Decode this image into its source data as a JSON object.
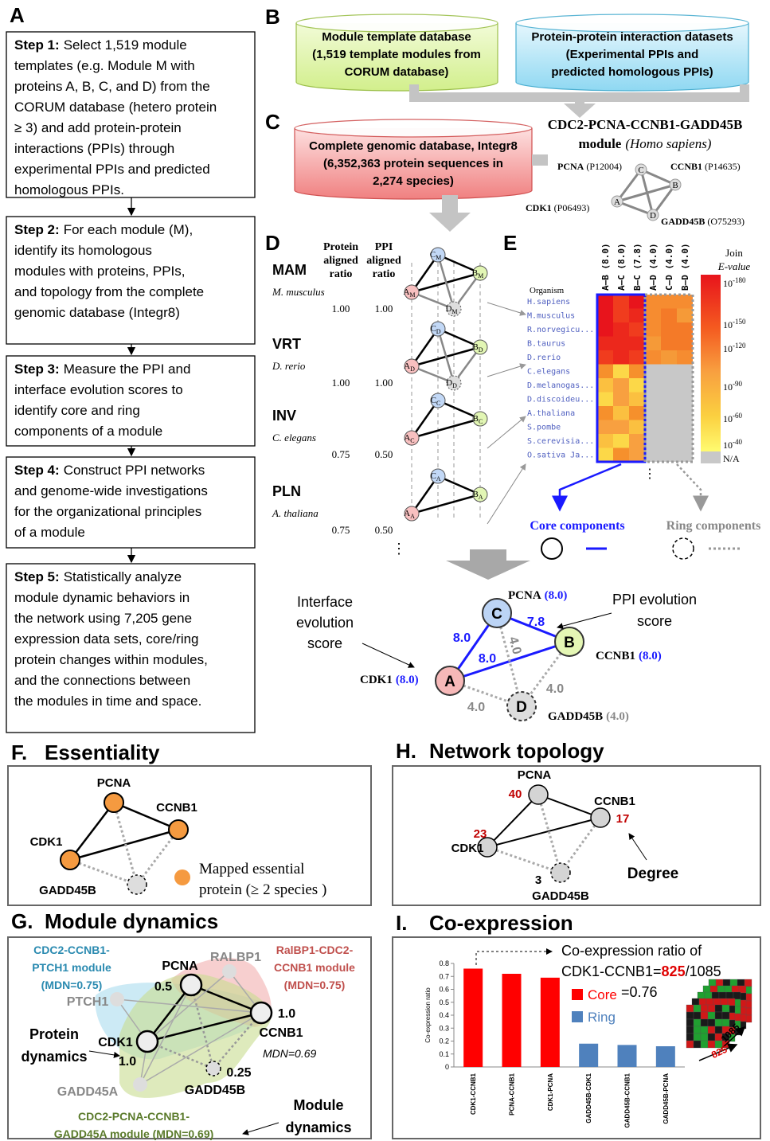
{
  "panel_a": {
    "label": "A",
    "steps": [
      {
        "heading": "Step 1:",
        "lines": [
          "Select 1,519 module",
          "templates (e.g. Module M with",
          "proteins A, B, C, and D) from the",
          "CORUM database (hetero protein",
          "≥ 3) and add protein-protein",
          "interactions (PPIs) through",
          "experimental PPIs and predicted",
          "homologous PPIs."
        ]
      },
      {
        "heading": "Step 2:",
        "lines": [
          "For each module (M),",
          "identify its homologous",
          "modules with proteins, PPIs,",
          "and topology from the complete",
          "genomic database (Integr8)"
        ]
      },
      {
        "heading": "Step 3:",
        "lines": [
          "Measure the PPI and",
          "interface evolution scores to",
          "identify core and ring",
          "components of a module"
        ]
      },
      {
        "heading": "Step 4:",
        "lines": [
          "Construct PPI networks",
          "and genome-wide investigations",
          "for the organizational principles",
          "of a module"
        ]
      },
      {
        "heading": "Step 5:",
        "lines": [
          "Statistically analyze",
          "module dynamic behaviors in",
          "the network using 7,205 gene",
          "expression data sets, core/ring",
          "protein changes within modules,",
          "and the connections between",
          "the modules in time and space."
        ]
      }
    ]
  },
  "panel_b": {
    "label": "B",
    "databases": [
      {
        "lines": [
          "Module template database",
          "(1,519 template modules from",
          "CORUM database)"
        ]
      },
      {
        "lines": [
          "Protein-protein interaction datasets",
          "(Experimental PPIs and",
          "predicted homologous PPIs)"
        ]
      }
    ]
  },
  "panel_c": {
    "label": "C",
    "database": {
      "lines": [
        "Complete genomic database, Integr8",
        "(6,352,363 protein sequences in",
        "2,274 species)"
      ]
    },
    "module": {
      "title": "CDC2-PCNA-CCNB1-GADD45B",
      "subtitle": "module",
      "species": "(Homo sapiens)",
      "proteins": [
        {
          "node": "A",
          "name": "CDK1",
          "id": "(P06493)"
        },
        {
          "node": "B",
          "name": "CCNB1",
          "id": "(P14635)"
        },
        {
          "node": "C",
          "name": "PCNA",
          "id": "(P12004)"
        },
        {
          "node": "D",
          "name": "GADD45B",
          "id": "(O75293)"
        }
      ]
    }
  },
  "panel_d": {
    "label": "D",
    "headers": [
      [
        "Protein",
        "aligned",
        "ratio"
      ],
      [
        "PPI",
        "aligned",
        "ratio"
      ]
    ],
    "rows": [
      {
        "group": "MAM",
        "species": "M. musculus",
        "subscript": "M",
        "protein_ratio": "1.00",
        "ppi_ratio": "1.00"
      },
      {
        "group": "VRT",
        "species": "D. rerio",
        "subscript": "D",
        "protein_ratio": "1.00",
        "ppi_ratio": "1.00"
      },
      {
        "group": "INV",
        "species": "C. elegans",
        "subscript": "C",
        "protein_ratio": "0.75",
        "ppi_ratio": "0.50"
      },
      {
        "group": "PLN",
        "species": "A. thaliana",
        "subscript": "A",
        "protein_ratio": "0.75",
        "ppi_ratio": "0.50"
      }
    ],
    "more": "⋮"
  },
  "panel_e": {
    "label": "E",
    "organism_header": "Organism",
    "organisms": [
      "H.sapiens",
      "M.musculus",
      "R.norvegicu...",
      "B.taurus",
      "D.rerio",
      "C.elegans",
      "D.melanogas...",
      "D.discoideu...",
      "A.thaliana",
      "S.pombe",
      "S.cerevisia...",
      "O.sativa Ja..."
    ],
    "columns": [
      "A–B (8.0)",
      "A–C (8.0)",
      "B–C (7.8)",
      "A–D (4.0)",
      "C–D (4.0)",
      "B–D (4.0)"
    ],
    "legend": {
      "title": [
        "Join",
        "E-value"
      ],
      "base": "10",
      "exponents": [
        "-180",
        "-150",
        "-120",
        "-90",
        "-60",
        "-40"
      ],
      "na": "N/A"
    },
    "more": "⋮",
    "core": "Core components",
    "ring": "Ring components"
  },
  "scores": {
    "interface_label": [
      "Interface",
      "evolution",
      "score"
    ],
    "ppi_label": [
      "PPI evolution",
      "score"
    ],
    "nodes": [
      {
        "node": "A",
        "name": "CDK1",
        "score": "(8.0)"
      },
      {
        "node": "B",
        "name": "CCNB1",
        "score": "(8.0)"
      },
      {
        "node": "C",
        "name": "PCNA",
        "score": "(8.0)"
      },
      {
        "node": "D",
        "name": "GADD45B",
        "score": "(4.0)"
      }
    ],
    "edges": [
      "8.0",
      "7.8",
      "8.0",
      "4.0",
      "4.0",
      "4.0"
    ]
  },
  "panel_f": {
    "label": "F.",
    "title": "Essentiality",
    "nodes": [
      "PCNA",
      "CCNB1",
      "CDK1",
      "GADD45B"
    ],
    "legend": [
      "Mapped essential",
      "protein (≥ 2 species )"
    ]
  },
  "panel_h": {
    "label": "H.",
    "title": "Network topology",
    "nodes": [
      {
        "name": "PCNA",
        "degree": 40
      },
      {
        "name": "CCNB1",
        "degree": 17
      },
      {
        "name": "CDK1",
        "degree": 23
      },
      {
        "name": "GADD45B",
        "degree": 3
      }
    ],
    "degree_label": "Degree"
  },
  "panel_g": {
    "label": "G.",
    "title": "Module dynamics",
    "modules": [
      {
        "lines": [
          "CDC2-CCNB1-",
          "PTCH1 module",
          "(MDN=0.75)"
        ]
      },
      {
        "lines": [
          "RalBP1-CDC2-",
          "CCNB1 module",
          "(MDN=0.75)"
        ]
      },
      {
        "lines": [
          "CDC2-PCNA-CCNB1-",
          "GADD45A module (MDN=0.69)"
        ]
      }
    ],
    "nodes": [
      {
        "name": "PCNA",
        "score": "0.5"
      },
      {
        "name": "RALBP1"
      },
      {
        "name": "PTCH1"
      },
      {
        "name": "CDK1",
        "score": "1.0"
      },
      {
        "name": "CCNB1",
        "score": "1.0"
      },
      {
        "name": "GADD45B",
        "score": "0.25"
      },
      {
        "name": "GADD45A"
      }
    ],
    "mdn": "MDN=0.69",
    "protein_dynamics": [
      "Protein",
      "dynamics"
    ],
    "module_dynamics": [
      "Module",
      "dynamics"
    ]
  },
  "panel_i": {
    "label": "I.",
    "title": "Co-expression",
    "chart": {
      "type": "bar",
      "y_label": "Co-expression ratio",
      "categories": [
        "CDK1-CCNB1",
        "PCNA-CCNB1",
        "CDK1-PCNA",
        "GADD45B-CDK1",
        "GADD45B-CCNB1",
        "GADD45B-PCNA"
      ],
      "series": [
        {
          "name": "Core",
          "color": "#ff0000",
          "values": [
            0.76,
            0.72,
            0.69,
            null,
            null,
            null
          ]
        },
        {
          "name": "Ring",
          "color": "#4f81bd",
          "values": [
            null,
            null,
            null,
            0.18,
            0.17,
            0.16
          ]
        }
      ],
      "ylim": [
        0,
        0.8
      ],
      "yticks": [
        0,
        0.1,
        0.2,
        0.3,
        0.4,
        0.5,
        0.6,
        0.7,
        0.8
      ]
    },
    "annotation": {
      "line1": "Co-expression ratio of",
      "prefix": "CDK1-CCNB1=",
      "numerator": "825",
      "denominator": "/1085",
      "line3": "=0.76"
    },
    "cube_labels": [
      "1085",
      "825"
    ]
  }
}
